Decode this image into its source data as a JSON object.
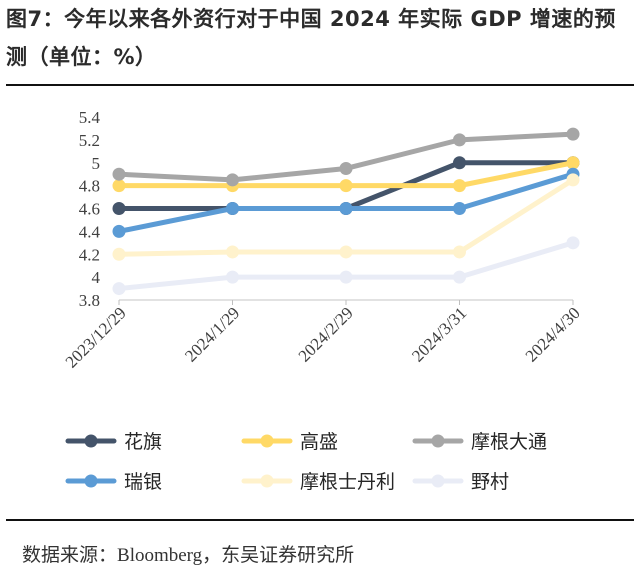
{
  "header": {
    "title": "图7：今年以来各外资行对于中国 2024 年实际 GDP 增速的预测（单位：%）"
  },
  "source": {
    "label": "数据来源：",
    "text": "Bloomberg，东吴证券研究所"
  },
  "chart_data": {
    "type": "line",
    "title": "图7：今年以来各外资行对于中国 2024 年实际 GDP 增速的预测（单位：%）",
    "xlabel": "",
    "ylabel": "",
    "categories": [
      "2023/12/29",
      "2024/1/29",
      "2024/2/29",
      "2024/3/31",
      "2024/4/30"
    ],
    "ylim": [
      3.8,
      5.4
    ],
    "yticks": [
      "3.8",
      "4",
      "4.2",
      "4.4",
      "4.6",
      "4.8",
      "5",
      "5.2",
      "5.4"
    ],
    "grid": false,
    "legend": "bottom",
    "series": [
      {
        "name": "花旗",
        "color": "#44546a",
        "values": [
          4.6,
          4.6,
          4.6,
          5.0,
          5.0
        ]
      },
      {
        "name": "高盛",
        "color": "#ffd966",
        "values": [
          4.8,
          4.8,
          4.8,
          4.8,
          5.0
        ]
      },
      {
        "name": "摩根大通",
        "color": "#a6a6a6",
        "values": [
          4.9,
          4.85,
          4.95,
          5.2,
          5.25
        ]
      },
      {
        "name": "瑞银",
        "color": "#5b9bd5",
        "values": [
          4.4,
          4.6,
          4.6,
          4.6,
          4.9
        ]
      },
      {
        "name": "摩根士丹利",
        "color": "#fff2cc",
        "values": [
          4.2,
          4.22,
          4.22,
          4.22,
          4.85
        ]
      },
      {
        "name": "野村",
        "color": "#e9ecf6",
        "values": [
          3.9,
          4.0,
          4.0,
          4.0,
          4.3
        ]
      }
    ]
  }
}
